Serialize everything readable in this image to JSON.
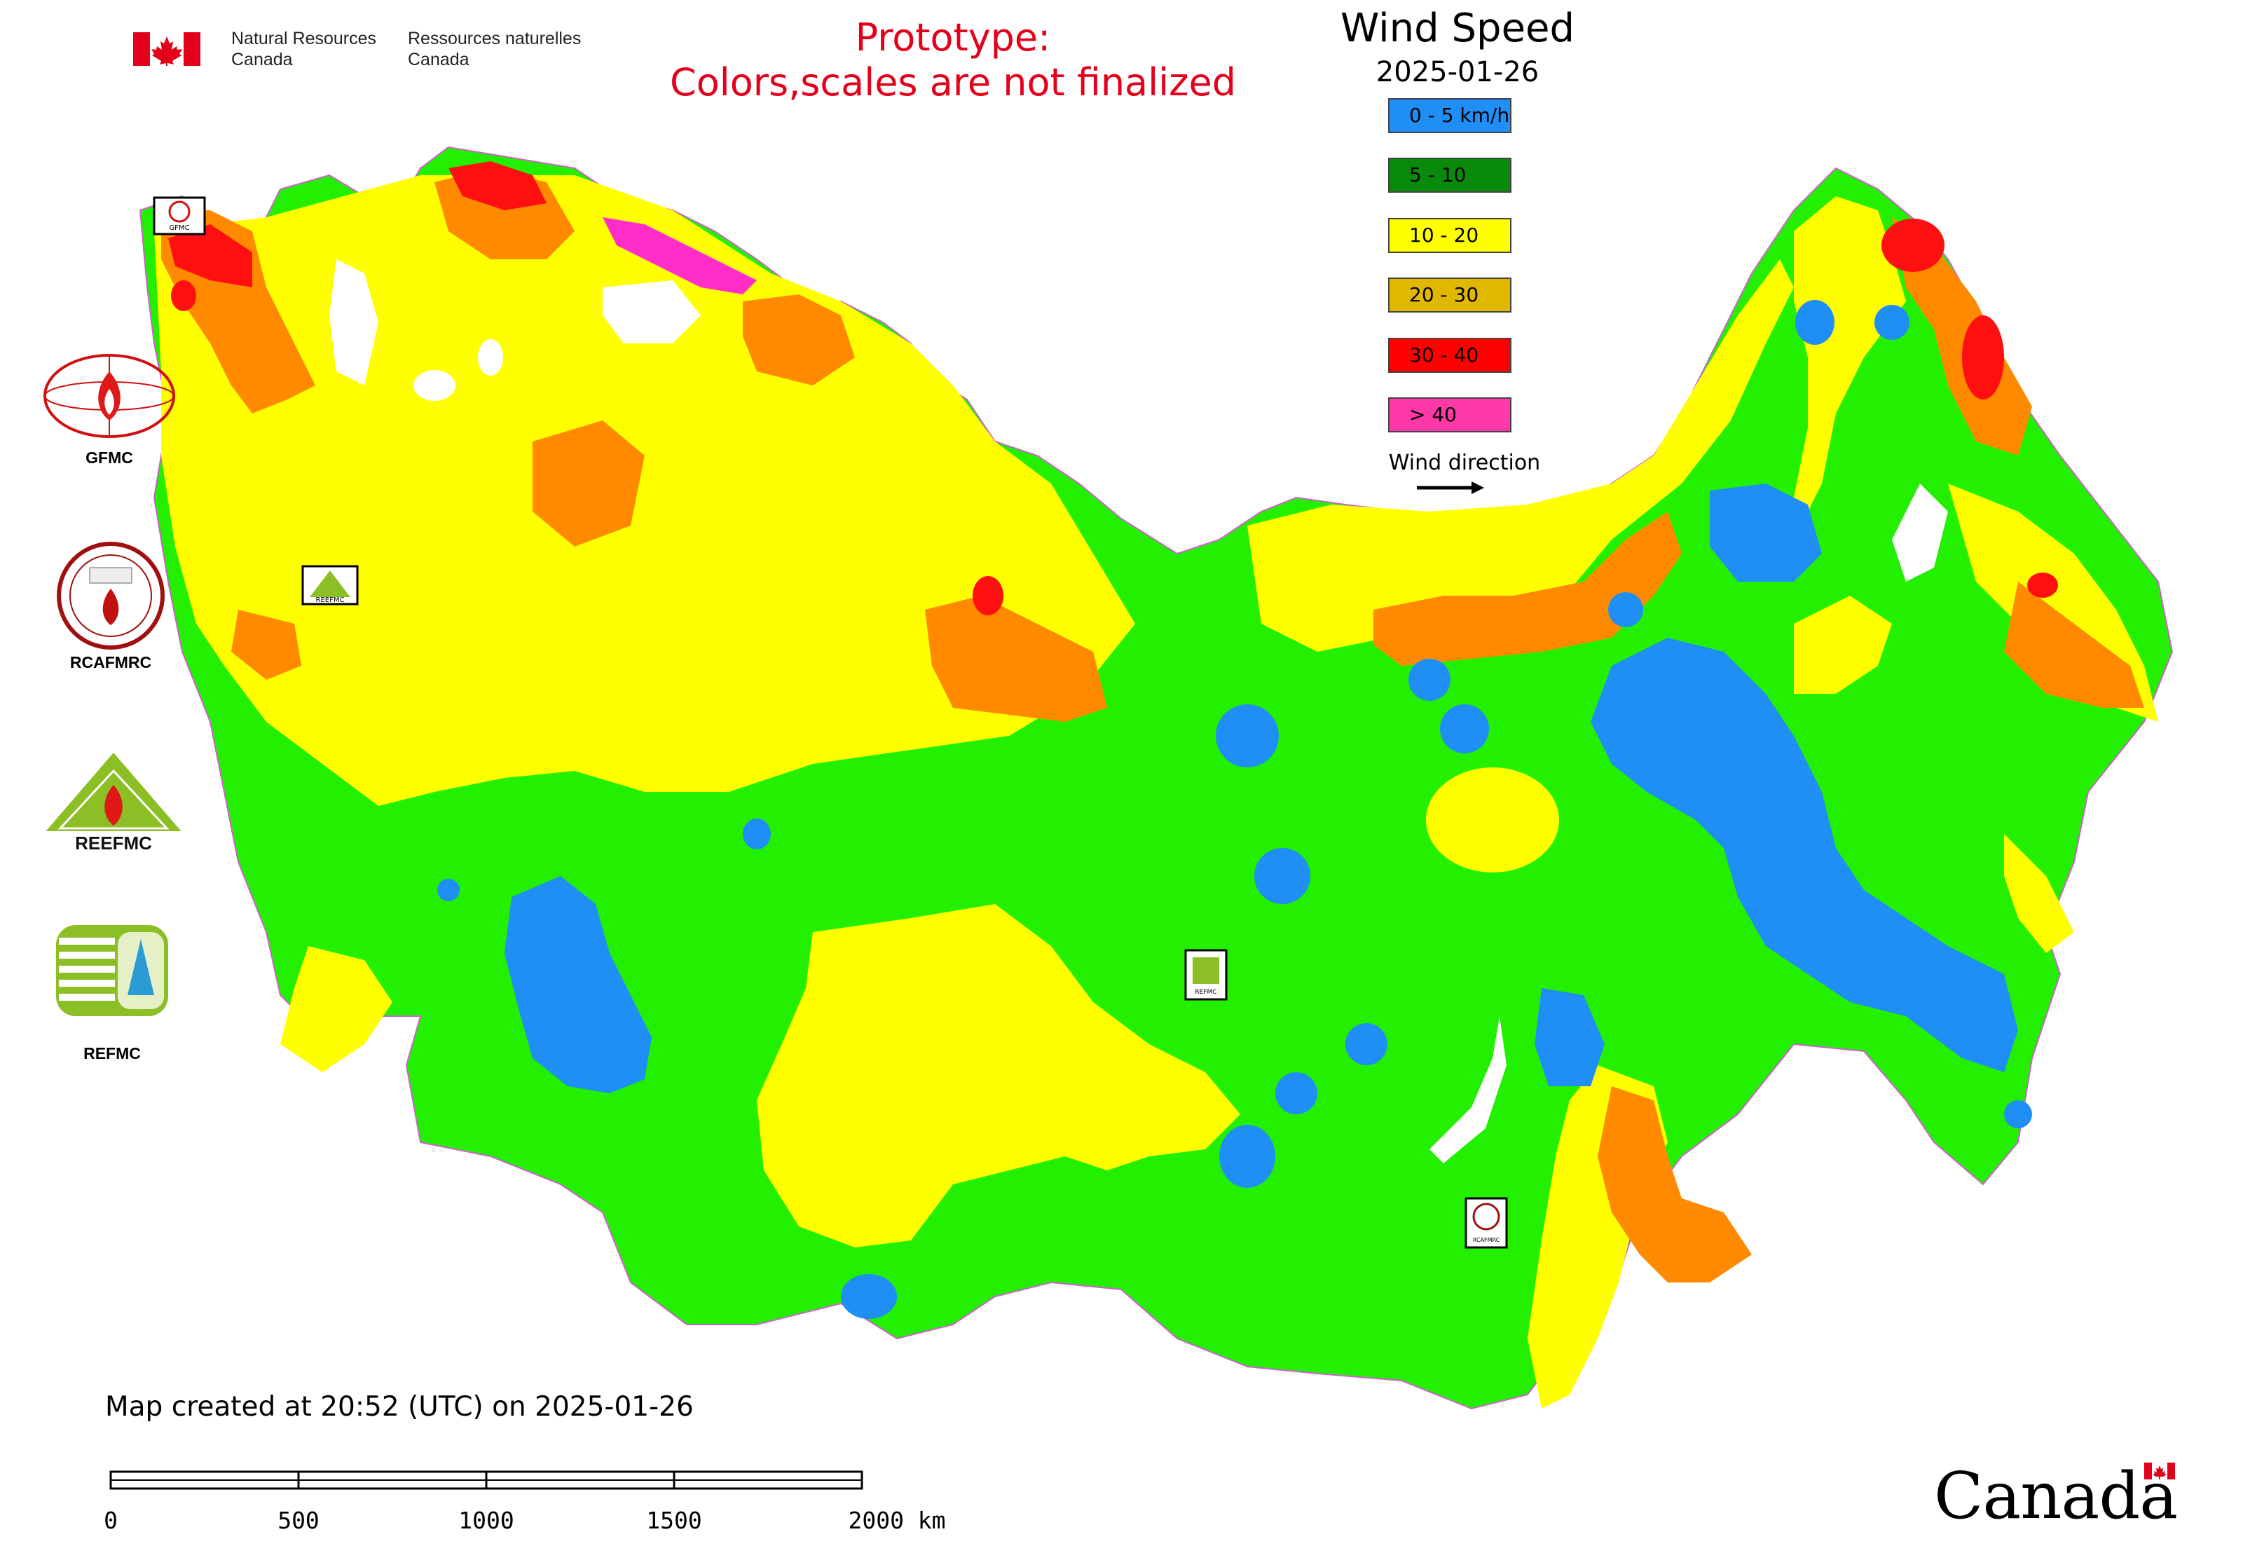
{
  "header": {
    "dept_en_line1": "Natural Resources",
    "dept_en_line2": "Canada",
    "dept_fr_line1": "Ressources naturelles",
    "dept_fr_line2": "Canada",
    "prototype_line1": "Prototype:",
    "prototype_line2": "Colors,scales are not finalized"
  },
  "legend": {
    "title": "Wind Speed",
    "date": "2025-01-26",
    "items": [
      {
        "label": "0 - 5 km/h",
        "color": "#1f8ff5"
      },
      {
        "label": "5 - 10",
        "color": "#0a8a0a"
      },
      {
        "label": "10 - 20",
        "color": "#ffff00"
      },
      {
        "label": "20 - 30",
        "color": "#e1b800"
      },
      {
        "label": "30 - 40",
        "color": "#ff0000"
      },
      {
        "label": "> 40",
        "color": "#ff3aa8"
      }
    ],
    "wind_direction_label": "Wind direction"
  },
  "map_colors": {
    "blue": "#1f8ff5",
    "green": "#22f000",
    "yellow": "#ffff00",
    "orange": "#ff8a00",
    "red": "#ff1010",
    "magenta": "#ff2cc8"
  },
  "organizations": [
    {
      "name": "GFMC",
      "icon": "gfmc-logo"
    },
    {
      "name": "RCAFMRC",
      "icon": "rcafmrc-logo"
    },
    {
      "name": "REEFMC",
      "icon": "reefmc-logo"
    },
    {
      "name": "REFMC",
      "icon": "refmc-logo"
    }
  ],
  "marker_labels": {
    "gfmc": "GFMC",
    "reefmc": "REEFMC",
    "refmc": "REFMC",
    "rcafmrc": "RCAFMRC"
  },
  "footer": {
    "created": "Map created at 20:52 (UTC) on 2025-01-26",
    "scale_labels": [
      "0",
      "500",
      "1000",
      "1500",
      "2000 km"
    ],
    "wordmark": "Canada"
  }
}
